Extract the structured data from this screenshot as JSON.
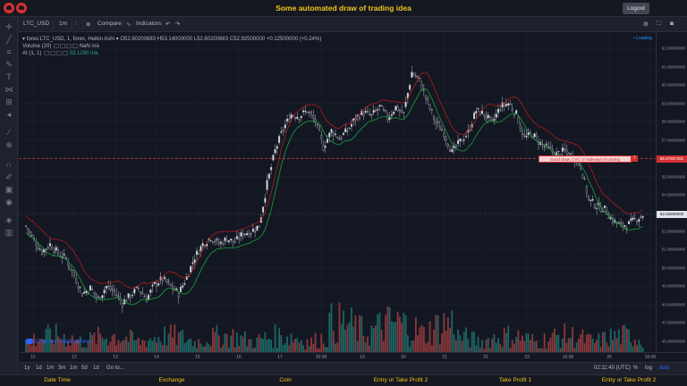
{
  "app": {
    "title": "Some automated draw of trading idea",
    "logout_label": "Logout"
  },
  "toolbar": {
    "symbol": "LTC_USD",
    "interval": "1m",
    "compare_label": "Compare",
    "indicators_label": "Indicators"
  },
  "legend": {
    "series_title": "forex:LTC_USD, 1, forex, Heikin Ashi",
    "open": "O52.60200683",
    "high": "H53.14000000",
    "low": "L52.60200683",
    "close": "C52.92500000",
    "change": "+0.12500000 (+0.24%)",
    "volume_label": "Volume (20)",
    "volume_values": "NaN n/a",
    "ai_label": "AI (1, 1)",
    "ai_values": "53.1290 n/a",
    "loading": "Loading"
  },
  "idea": {
    "text": "Good draw, CVC or sideways incoming",
    "marker": "!",
    "price_label": "55.97657291"
  },
  "credit": "Chart by TradingView",
  "rangebar": {
    "ranges": [
      "1y",
      "1d",
      "1m",
      "3m",
      "1m",
      "5d",
      "1d"
    ],
    "goto_label": "Go to...",
    "time": "02:11:40 (UTC)",
    "pct_label": "%",
    "log_label": "log",
    "auto_label": "auto"
  },
  "footer": {
    "items": [
      "Date Time",
      "Exchange",
      "Coin",
      "Entry or Take Profit 2",
      "Take Profit 1",
      "Entry or Take Profit 2"
    ]
  },
  "colors": {
    "up": "#26a69a",
    "down": "#ef5350",
    "accent_yellow": "#f0c419",
    "idea_red": "#d63031",
    "ma_line": "#1b9e3e",
    "upper_band": "#c41c1c",
    "current_price_bg": "#e0e3eb"
  },
  "icons": {
    "sidebar": [
      "crosshair-icon",
      "trend-line-icon",
      "fib-icon",
      "brush-icon",
      "text-icon",
      "pattern-icon",
      "prediction-icon",
      "arrow-icon",
      "ruler-icon",
      "zoom-icon",
      "magnet-icon",
      "lock-icon",
      "eye-icon",
      "layers-icon",
      "trash-icon"
    ]
  },
  "chart_data": {
    "type": "candlestick",
    "symbol": "LTC_USD",
    "style": "heikin-ashi",
    "x_tick_labels": [
      "11",
      "12",
      "13",
      "14",
      "15",
      "16",
      "17",
      "10:00",
      "19",
      "20",
      "21",
      "22",
      "23",
      "10:00",
      "26",
      "10:00"
    ],
    "y_tick_labels": [
      "62.00000000",
      "61.00000000",
      "60.00000000",
      "59.00000000",
      "58.00000000",
      "57.00000000",
      "56.00000000",
      "55.00000000",
      "54.00000000",
      "53.00000000",
      "52.00000000",
      "51.00000000",
      "50.00000000",
      "49.00000000",
      "48.00000000",
      "47.00000000",
      "46.00000000"
    ],
    "ylim": [
      45.8,
      62.3
    ],
    "current_price": 52.925,
    "idea_level": 55.97657291,
    "close_path": [
      [
        0,
        52.3
      ],
      [
        4,
        51.5
      ],
      [
        8,
        50.9
      ],
      [
        12,
        51.3
      ],
      [
        16,
        50.8
      ],
      [
        20,
        50.5
      ],
      [
        24,
        49.6
      ],
      [
        28,
        48.6
      ],
      [
        32,
        48.9
      ],
      [
        36,
        48.3
      ],
      [
        40,
        49.0
      ],
      [
        44,
        48.7
      ],
      [
        48,
        48.1
      ],
      [
        52,
        48.5
      ],
      [
        56,
        48.9
      ],
      [
        60,
        48.3
      ],
      [
        64,
        49.1
      ],
      [
        68,
        49.4
      ],
      [
        72,
        49.0
      ],
      [
        76,
        48.6
      ],
      [
        80,
        49.5
      ],
      [
        84,
        50.6
      ],
      [
        88,
        51.3
      ],
      [
        92,
        51.7
      ],
      [
        96,
        51.3
      ],
      [
        100,
        51.6
      ],
      [
        104,
        51.4
      ],
      [
        108,
        51.9
      ],
      [
        112,
        52.0
      ],
      [
        116,
        52.3
      ],
      [
        120,
        54.6
      ],
      [
        124,
        56.4
      ],
      [
        128,
        57.6
      ],
      [
        132,
        58.4
      ],
      [
        136,
        58.3
      ],
      [
        140,
        58.6
      ],
      [
        144,
        58.0
      ],
      [
        148,
        56.6
      ],
      [
        152,
        57.5
      ],
      [
        156,
        57.1
      ],
      [
        160,
        57.5
      ],
      [
        164,
        58.2
      ],
      [
        168,
        58.5
      ],
      [
        172,
        58.3
      ],
      [
        176,
        58.8
      ],
      [
        180,
        58.2
      ],
      [
        184,
        58.8
      ],
      [
        188,
        58.4
      ],
      [
        192,
        60.7
      ],
      [
        196,
        60.2
      ],
      [
        200,
        59.0
      ],
      [
        204,
        57.9
      ],
      [
        208,
        57.4
      ],
      [
        212,
        56.3
      ],
      [
        216,
        56.9
      ],
      [
        220,
        57.4
      ],
      [
        224,
        58.6
      ],
      [
        228,
        58.4
      ],
      [
        232,
        57.9
      ],
      [
        236,
        58.8
      ],
      [
        240,
        59.0
      ],
      [
        244,
        58.4
      ],
      [
        248,
        57.1
      ],
      [
        252,
        57.3
      ],
      [
        256,
        56.8
      ],
      [
        260,
        56.5
      ],
      [
        264,
        56.2
      ],
      [
        268,
        56.4
      ],
      [
        272,
        56.1
      ],
      [
        276,
        55.6
      ],
      [
        280,
        53.7
      ],
      [
        284,
        53.4
      ],
      [
        288,
        53.2
      ],
      [
        292,
        52.6
      ],
      [
        296,
        52.3
      ],
      [
        300,
        52.4
      ],
      [
        304,
        52.7
      ],
      [
        307,
        52.9
      ]
    ],
    "volume_scale": "relative"
  }
}
